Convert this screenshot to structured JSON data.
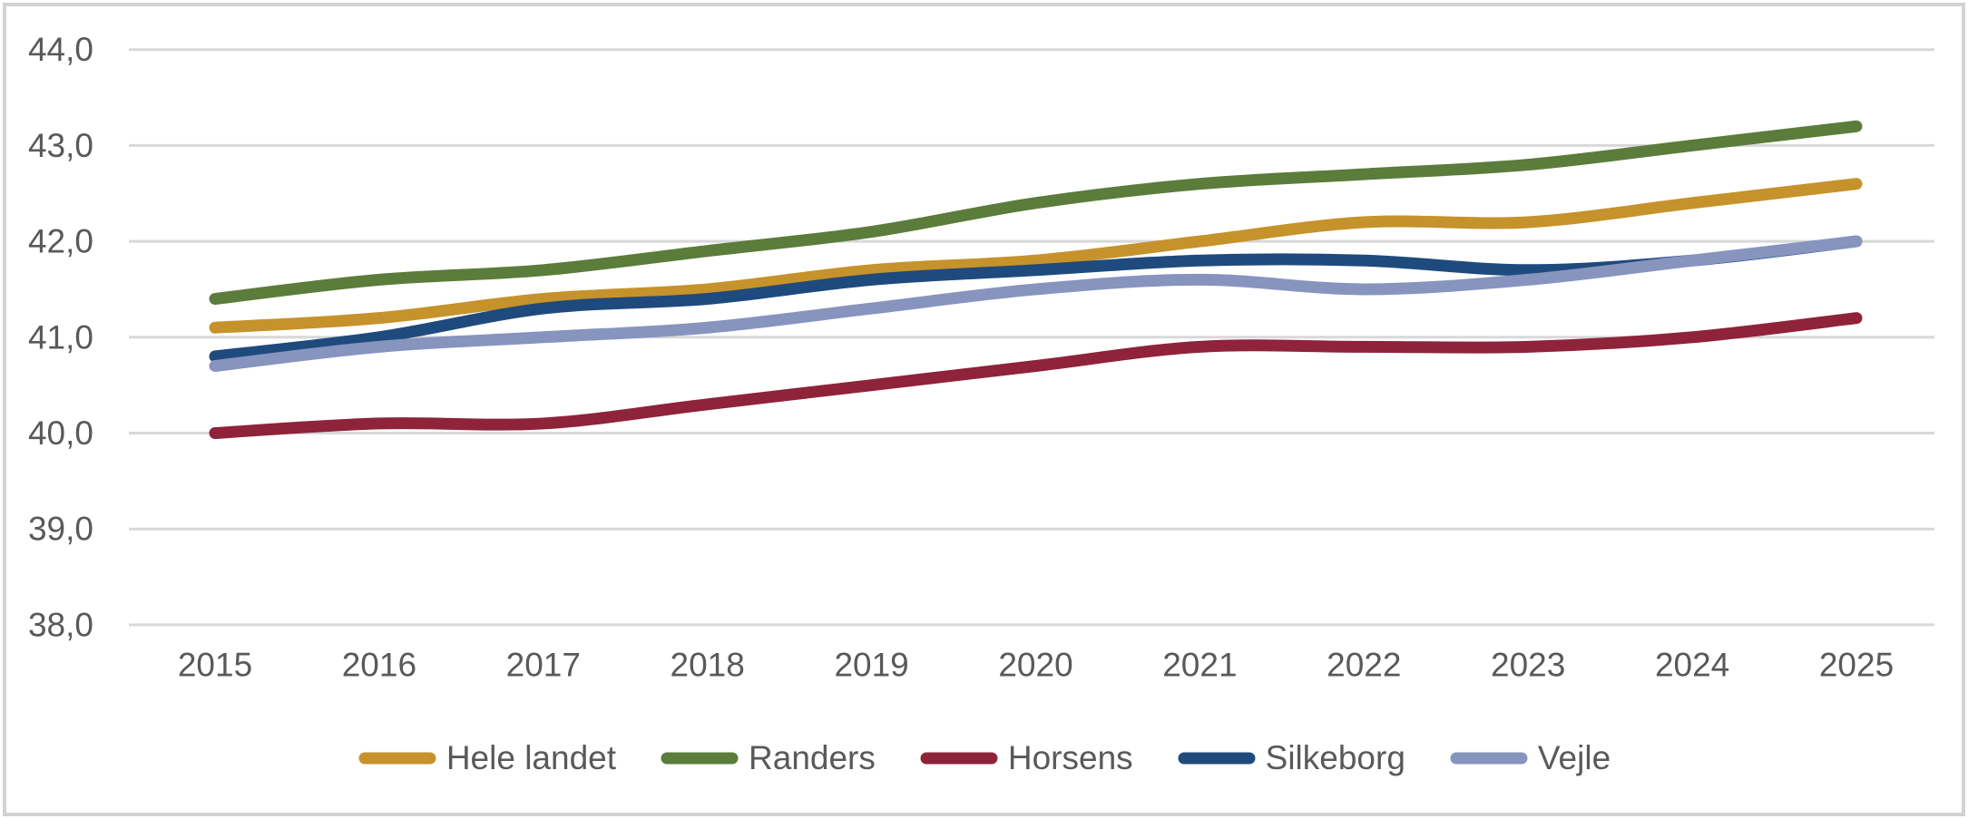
{
  "chart_data": {
    "type": "line",
    "title": "",
    "line_style": "smooth",
    "grid": true,
    "legend_position": "bottom",
    "decimal_separator": ",",
    "categories": [
      "2015",
      "2016",
      "2017",
      "2018",
      "2019",
      "2020",
      "2021",
      "2022",
      "2023",
      "2024",
      "2025"
    ],
    "series": [
      {
        "name": "Hele landet",
        "color": "#C6922B",
        "values": [
          41.1,
          41.2,
          41.4,
          41.5,
          41.7,
          41.8,
          42.0,
          42.2,
          42.2,
          42.4,
          42.6
        ]
      },
      {
        "name": "Randers",
        "color": "#5B7C3B",
        "values": [
          41.4,
          41.6,
          41.7,
          41.9,
          42.1,
          42.4,
          42.6,
          42.7,
          42.8,
          43.0,
          43.2
        ]
      },
      {
        "name": "Horsens",
        "color": "#8E2339",
        "values": [
          40.0,
          40.1,
          40.1,
          40.3,
          40.5,
          40.7,
          40.9,
          40.9,
          40.9,
          41.0,
          41.2
        ]
      },
      {
        "name": "Silkeborg",
        "color": "#1F4A7D",
        "values": [
          40.8,
          41.0,
          41.3,
          41.4,
          41.6,
          41.7,
          41.8,
          41.8,
          41.7,
          41.8,
          42.0
        ]
      },
      {
        "name": "Vejle",
        "color": "#8794BE",
        "values": [
          40.7,
          40.9,
          41.0,
          41.1,
          41.3,
          41.5,
          41.6,
          41.5,
          41.6,
          41.8,
          42.0
        ]
      }
    ],
    "y_axis": {
      "min": 38.0,
      "max": 44.0,
      "step": 1.0,
      "tick_values": [
        44.0,
        43.0,
        42.0,
        41.0,
        40.0,
        39.0,
        38.0
      ],
      "tick_labels": [
        "44,0",
        "43,0",
        "42,0",
        "41,0",
        "40,0",
        "39,0",
        "38,0"
      ]
    },
    "x_axis": {
      "tick_labels": [
        "2015",
        "2016",
        "2017",
        "2018",
        "2019",
        "2020",
        "2021",
        "2022",
        "2023",
        "2024",
        "2025"
      ]
    },
    "legend_labels": [
      "Hele landet",
      "Randers",
      "Horsens",
      "Silkeborg",
      "Vejle"
    ]
  },
  "styles": {
    "text_color": "#595959",
    "gridline_color": "#D8D8D8",
    "background_color": "#FFFFFF",
    "border_color": "#D2D2D2"
  }
}
